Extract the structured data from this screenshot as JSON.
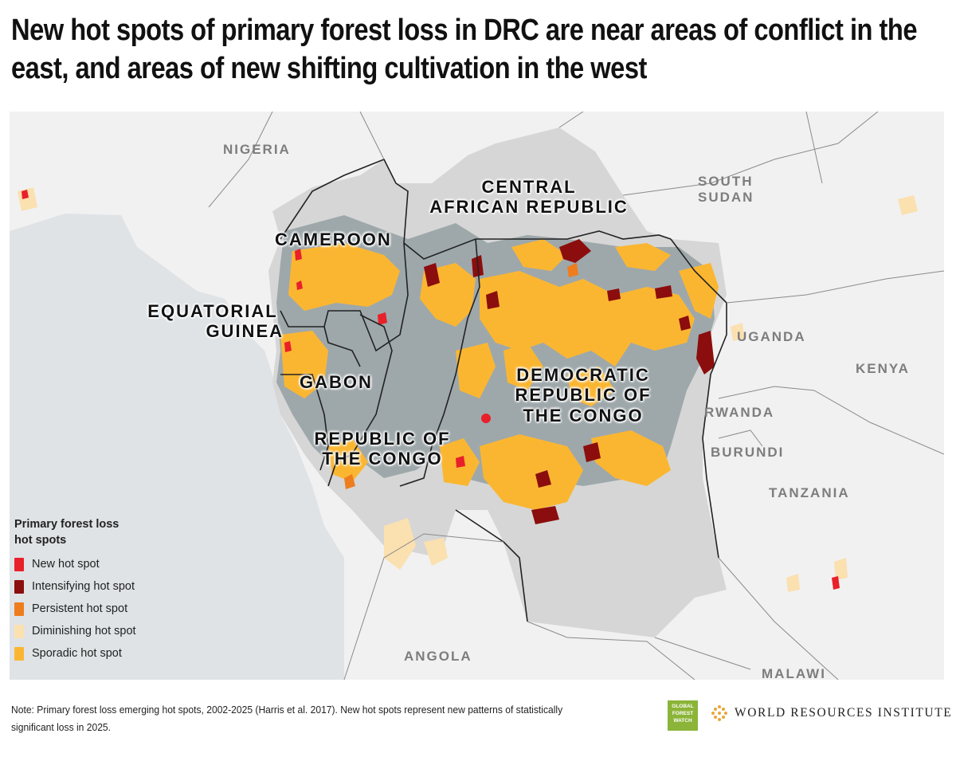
{
  "title": "New hot spots of primary forest loss in DRC are near areas of conflict in the east, and areas of new shifting cultivation in the west",
  "map": {
    "colors": {
      "water": "#dfe3e6",
      "land": "#f1f1f1",
      "basin_land": "#d6d6d6",
      "forest": "#9ea8ab",
      "border": "#222222",
      "faint_border": "#8a8a8a"
    },
    "labels": {
      "nigeria": "NIGERIA",
      "cameroon": "CAMEROON",
      "car_1": "CENTRAL",
      "car_2": "AFRICAN REPUBLIC",
      "south_sudan_1": "SOUTH",
      "south_sudan_2": "SUDAN",
      "eq_guinea_1": "EQUATORIAL",
      "eq_guinea_2": "GUINEA",
      "uganda": "UGANDA",
      "kenya": "KENYA",
      "gabon": "GABON",
      "drc_1": "DEMOCRATIC",
      "drc_2": "REPUBLIC OF",
      "drc_3": "THE CONGO",
      "rwanda": "RWANDA",
      "burundi": "BURUNDI",
      "roc_1": "REPUBLIC OF",
      "roc_2": "THE CONGO",
      "tanzania": "TANZANIA",
      "angola": "ANGOLA",
      "malawi": "MALAWI"
    }
  },
  "legend": {
    "title": "Primary forest loss hot spots",
    "items": [
      {
        "label": "New hot spot",
        "color": "#e8202a"
      },
      {
        "label": "Intensifying hot spot",
        "color": "#8c0d0d"
      },
      {
        "label": "Persistent hot spot",
        "color": "#ee7d1e"
      },
      {
        "label": "Diminishing hot spot",
        "color": "#fbe0b0"
      },
      {
        "label": "Sporadic hot spot",
        "color": "#fbb631"
      }
    ]
  },
  "note": "Note: Primary forest loss emerging hot spots, 2002-2025 (Harris et al. 2017). New hot spots represent new patterns of statistically significant loss in 2025.",
  "logos": {
    "gfw_1": "GLOBAL",
    "gfw_2": "FOREST",
    "gfw_3": "WATCH",
    "wri": "WORLD RESOURCES INSTITUTE"
  }
}
